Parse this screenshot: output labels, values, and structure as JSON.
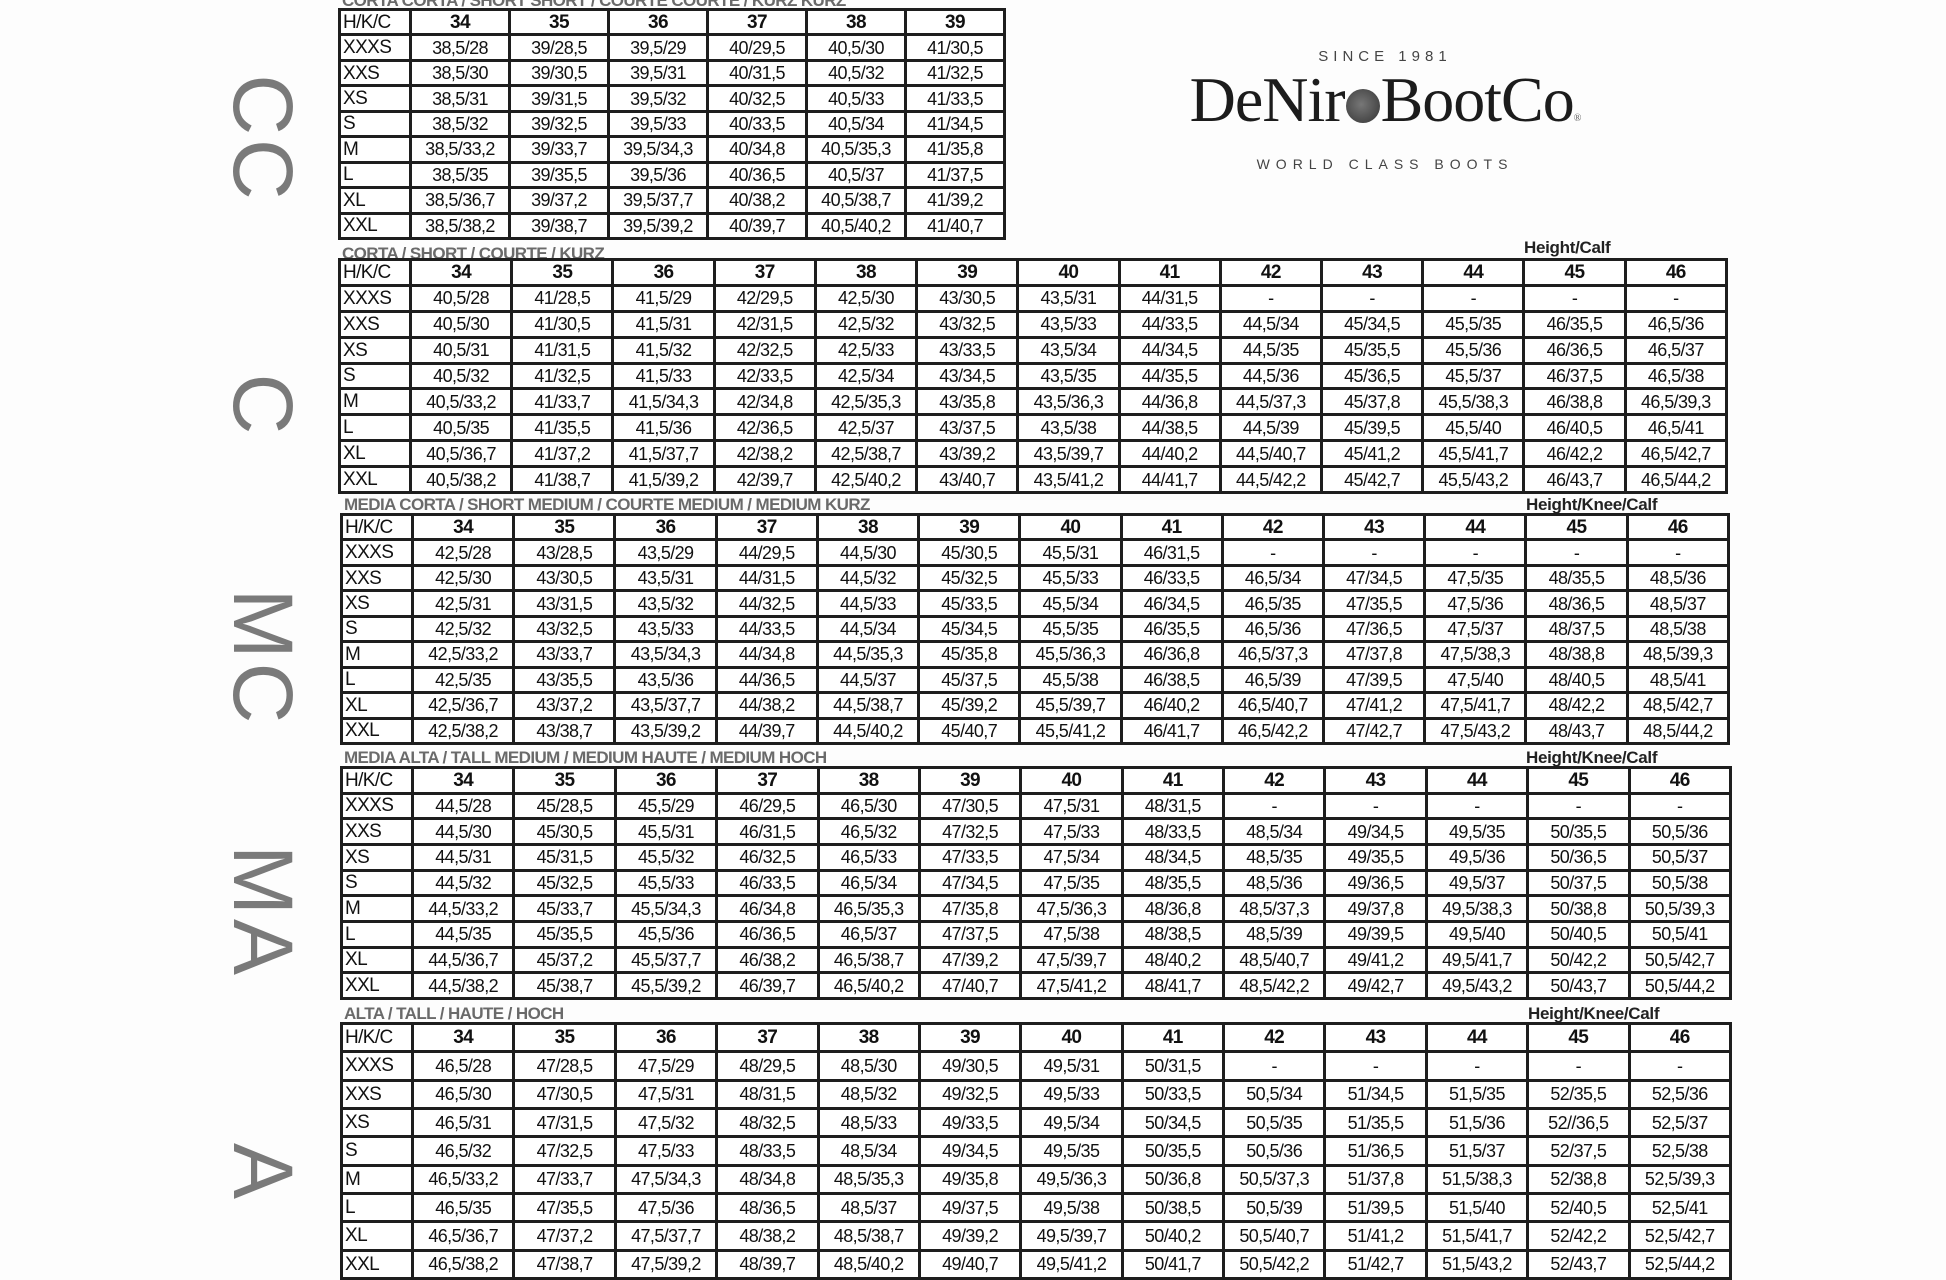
{
  "logo": {
    "since": "SINCE 1981",
    "brand_left": "DeNir",
    "brand_right": "BootCo",
    "registered": "®",
    "tagline": "WORLD CLASS BOOTS"
  },
  "side_labels": [
    "CC",
    "C",
    "MC",
    "MA",
    "A"
  ],
  "tables": [
    {
      "title": "CORTA CORTA / SHORT SHORT / COURTE COURTE / KURZ KURZ",
      "note": "",
      "corner": "H/K/C",
      "columns": [
        "34",
        "35",
        "36",
        "37",
        "38",
        "39"
      ],
      "rows": [
        {
          "size": "XXXS",
          "values": [
            "38,5/28",
            "39/28,5",
            "39,5/29",
            "40/29,5",
            "40,5/30",
            "41/30,5"
          ]
        },
        {
          "size": "XXS",
          "values": [
            "38,5/30",
            "39/30,5",
            "39,5/31",
            "40/31,5",
            "40,5/32",
            "41/32,5"
          ]
        },
        {
          "size": "XS",
          "values": [
            "38,5/31",
            "39/31,5",
            "39,5/32",
            "40/32,5",
            "40,5/33",
            "41/33,5"
          ]
        },
        {
          "size": "S",
          "values": [
            "38,5/32",
            "39/32,5",
            "39,5/33",
            "40/33,5",
            "40,5/34",
            "41/34,5"
          ]
        },
        {
          "size": "M",
          "values": [
            "38,5/33,2",
            "39/33,7",
            "39,5/34,3",
            "40/34,8",
            "40,5/35,3",
            "41/35,8"
          ]
        },
        {
          "size": "L",
          "values": [
            "38,5/35",
            "39/35,5",
            "39,5/36",
            "40/36,5",
            "40,5/37",
            "41/37,5"
          ]
        },
        {
          "size": "XL",
          "values": [
            "38,5/36,7",
            "39/37,2",
            "39,5/37,7",
            "40/38,2",
            "40,5/38,7",
            "41/39,2"
          ]
        },
        {
          "size": "XXL",
          "values": [
            "38,5/38,2",
            "39/38,7",
            "39,5/39,2",
            "40/39,7",
            "40,5/40,2",
            "41/40,7"
          ]
        }
      ]
    },
    {
      "title": "CORTA / SHORT / COURTE / KURZ",
      "note": "Height/Calf",
      "corner": "H/K/C",
      "columns": [
        "34",
        "35",
        "36",
        "37",
        "38",
        "39",
        "40",
        "41",
        "42",
        "43",
        "44",
        "45",
        "46"
      ],
      "rows": [
        {
          "size": "XXXS",
          "values": [
            "40,5/28",
            "41/28,5",
            "41,5/29",
            "42/29,5",
            "42,5/30",
            "43/30,5",
            "43,5/31",
            "44/31,5",
            "-",
            "-",
            "-",
            "-",
            "-"
          ]
        },
        {
          "size": "XXS",
          "values": [
            "40,5/30",
            "41/30,5",
            "41,5/31",
            "42/31,5",
            "42,5/32",
            "43/32,5",
            "43,5/33",
            "44/33,5",
            "44,5/34",
            "45/34,5",
            "45,5/35",
            "46/35,5",
            "46,5/36"
          ]
        },
        {
          "size": "XS",
          "values": [
            "40,5/31",
            "41/31,5",
            "41,5/32",
            "42/32,5",
            "42,5/33",
            "43/33,5",
            "43,5/34",
            "44/34,5",
            "44,5/35",
            "45/35,5",
            "45,5/36",
            "46/36,5",
            "46,5/37"
          ]
        },
        {
          "size": "S",
          "values": [
            "40,5/32",
            "41/32,5",
            "41,5/33",
            "42/33,5",
            "42,5/34",
            "43/34,5",
            "43,5/35",
            "44/35,5",
            "44,5/36",
            "45/36,5",
            "45,5/37",
            "46/37,5",
            "46,5/38"
          ]
        },
        {
          "size": "M",
          "values": [
            "40,5/33,2",
            "41/33,7",
            "41,5/34,3",
            "42/34,8",
            "42,5/35,3",
            "43/35,8",
            "43,5/36,3",
            "44/36,8",
            "44,5/37,3",
            "45/37,8",
            "45,5/38,3",
            "46/38,8",
            "46,5/39,3"
          ]
        },
        {
          "size": "L",
          "values": [
            "40,5/35",
            "41/35,5",
            "41,5/36",
            "42/36,5",
            "42,5/37",
            "43/37,5",
            "43,5/38",
            "44/38,5",
            "44,5/39",
            "45/39,5",
            "45,5/40",
            "46/40,5",
            "46,5/41"
          ]
        },
        {
          "size": "XL",
          "values": [
            "40,5/36,7",
            "41/37,2",
            "41,5/37,7",
            "42/38,2",
            "42,5/38,7",
            "43/39,2",
            "43,5/39,7",
            "44/40,2",
            "44,5/40,7",
            "45/41,2",
            "45,5/41,7",
            "46/42,2",
            "46,5/42,7"
          ]
        },
        {
          "size": "XXL",
          "values": [
            "40,5/38,2",
            "41/38,7",
            "41,5/39,2",
            "42/39,7",
            "42,5/40,2",
            "43/40,7",
            "43,5/41,2",
            "44/41,7",
            "44,5/42,2",
            "45/42,7",
            "45,5/43,2",
            "46/43,7",
            "46,5/44,2"
          ]
        }
      ]
    },
    {
      "title": "MEDIA CORTA / SHORT MEDIUM / COURTE MEDIUM / MEDIUM KURZ",
      "note": "Height/Knee/Calf",
      "corner": "H/K/C",
      "columns": [
        "34",
        "35",
        "36",
        "37",
        "38",
        "39",
        "40",
        "41",
        "42",
        "43",
        "44",
        "45",
        "46"
      ],
      "rows": [
        {
          "size": "XXXS",
          "values": [
            "42,5/28",
            "43/28,5",
            "43,5/29",
            "44/29,5",
            "44,5/30",
            "45/30,5",
            "45,5/31",
            "46/31,5",
            "-",
            "-",
            "-",
            "-",
            "-"
          ]
        },
        {
          "size": "XXS",
          "values": [
            "42,5/30",
            "43/30,5",
            "43,5/31",
            "44/31,5",
            "44,5/32",
            "45/32,5",
            "45,5/33",
            "46/33,5",
            "46,5/34",
            "47/34,5",
            "47,5/35",
            "48/35,5",
            "48,5/36"
          ]
        },
        {
          "size": "XS",
          "values": [
            "42,5/31",
            "43/31,5",
            "43,5/32",
            "44/32,5",
            "44,5/33",
            "45/33,5",
            "45,5/34",
            "46/34,5",
            "46,5/35",
            "47/35,5",
            "47,5/36",
            "48/36,5",
            "48,5/37"
          ]
        },
        {
          "size": "S",
          "values": [
            "42,5/32",
            "43/32,5",
            "43,5/33",
            "44/33,5",
            "44,5/34",
            "45/34,5",
            "45,5/35",
            "46/35,5",
            "46,5/36",
            "47/36,5",
            "47,5/37",
            "48/37,5",
            "48,5/38"
          ]
        },
        {
          "size": "M",
          "values": [
            "42,5/33,2",
            "43/33,7",
            "43,5/34,3",
            "44/34,8",
            "44,5/35,3",
            "45/35,8",
            "45,5/36,3",
            "46/36,8",
            "46,5/37,3",
            "47/37,8",
            "47,5/38,3",
            "48/38,8",
            "48,5/39,3"
          ]
        },
        {
          "size": "L",
          "values": [
            "42,5/35",
            "43/35,5",
            "43,5/36",
            "44/36,5",
            "44,5/37",
            "45/37,5",
            "45,5/38",
            "46/38,5",
            "46,5/39",
            "47/39,5",
            "47,5/40",
            "48/40,5",
            "48,5/41"
          ]
        },
        {
          "size": "XL",
          "values": [
            "42,5/36,7",
            "43/37,2",
            "43,5/37,7",
            "44/38,2",
            "44,5/38,7",
            "45/39,2",
            "45,5/39,7",
            "46/40,2",
            "46,5/40,7",
            "47/41,2",
            "47,5/41,7",
            "48/42,2",
            "48,5/42,7"
          ]
        },
        {
          "size": "XXL",
          "values": [
            "42,5/38,2",
            "43/38,7",
            "43,5/39,2",
            "44/39,7",
            "44,5/40,2",
            "45/40,7",
            "45,5/41,2",
            "46/41,7",
            "46,5/42,2",
            "47/42,7",
            "47,5/43,2",
            "48/43,7",
            "48,5/44,2"
          ]
        }
      ]
    },
    {
      "title": "MEDIA ALTA / TALL MEDIUM / MEDIUM HAUTE / MEDIUM HOCH",
      "note": "Height/Knee/Calf",
      "corner": "H/K/C",
      "columns": [
        "34",
        "35",
        "36",
        "37",
        "38",
        "39",
        "40",
        "41",
        "42",
        "43",
        "44",
        "45",
        "46"
      ],
      "rows": [
        {
          "size": "XXXS",
          "values": [
            "44,5/28",
            "45/28,5",
            "45,5/29",
            "46/29,5",
            "46,5/30",
            "47/30,5",
            "47,5/31",
            "48/31,5",
            "-",
            "-",
            "-",
            "-",
            "-"
          ]
        },
        {
          "size": "XXS",
          "values": [
            "44,5/30",
            "45/30,5",
            "45,5/31",
            "46/31,5",
            "46,5/32",
            "47/32,5",
            "47,5/33",
            "48/33,5",
            "48,5/34",
            "49/34,5",
            "49,5/35",
            "50/35,5",
            "50,5/36"
          ]
        },
        {
          "size": "XS",
          "values": [
            "44,5/31",
            "45/31,5",
            "45,5/32",
            "46/32,5",
            "46,5/33",
            "47/33,5",
            "47,5/34",
            "48/34,5",
            "48,5/35",
            "49/35,5",
            "49,5/36",
            "50/36,5",
            "50,5/37"
          ]
        },
        {
          "size": "S",
          "values": [
            "44,5/32",
            "45/32,5",
            "45,5/33",
            "46/33,5",
            "46,5/34",
            "47/34,5",
            "47,5/35",
            "48/35,5",
            "48,5/36",
            "49/36,5",
            "49,5/37",
            "50/37,5",
            "50,5/38"
          ]
        },
        {
          "size": "M",
          "values": [
            "44,5/33,2",
            "45/33,7",
            "45,5/34,3",
            "46/34,8",
            "46,5/35,3",
            "47/35,8",
            "47,5/36,3",
            "48/36,8",
            "48,5/37,3",
            "49/37,8",
            "49,5/38,3",
            "50/38,8",
            "50,5/39,3"
          ]
        },
        {
          "size": "L",
          "values": [
            "44,5/35",
            "45/35,5",
            "45,5/36",
            "46/36,5",
            "46,5/37",
            "47/37,5",
            "47,5/38",
            "48/38,5",
            "48,5/39",
            "49/39,5",
            "49,5/40",
            "50/40,5",
            "50,5/41"
          ]
        },
        {
          "size": "XL",
          "values": [
            "44,5/36,7",
            "45/37,2",
            "45,5/37,7",
            "46/38,2",
            "46,5/38,7",
            "47/39,2",
            "47,5/39,7",
            "48/40,2",
            "48,5/40,7",
            "49/41,2",
            "49,5/41,7",
            "50/42,2",
            "50,5/42,7"
          ]
        },
        {
          "size": "XXL",
          "values": [
            "44,5/38,2",
            "45/38,7",
            "45,5/39,2",
            "46/39,7",
            "46,5/40,2",
            "47/40,7",
            "47,5/41,2",
            "48/41,7",
            "48,5/42,2",
            "49/42,7",
            "49,5/43,2",
            "50/43,7",
            "50,5/44,2"
          ]
        }
      ]
    },
    {
      "title": "ALTA / TALL / HAUTE / HOCH",
      "note": "Height/Knee/Calf",
      "corner": "H/K/C",
      "columns": [
        "34",
        "35",
        "36",
        "37",
        "38",
        "39",
        "40",
        "41",
        "42",
        "43",
        "44",
        "45",
        "46"
      ],
      "rows": [
        {
          "size": "XXXS",
          "values": [
            "46,5/28",
            "47/28,5",
            "47,5/29",
            "48/29,5",
            "48,5/30",
            "49/30,5",
            "49,5/31",
            "50/31,5",
            "-",
            "-",
            "-",
            "-",
            "-"
          ]
        },
        {
          "size": "XXS",
          "values": [
            "46,5/30",
            "47/30,5",
            "47,5/31",
            "48/31,5",
            "48,5/32",
            "49/32,5",
            "49,5/33",
            "50/33,5",
            "50,5/34",
            "51/34,5",
            "51,5/35",
            "52/35,5",
            "52,5/36"
          ]
        },
        {
          "size": "XS",
          "values": [
            "46,5/31",
            "47/31,5",
            "47,5/32",
            "48/32,5",
            "48,5/33",
            "49/33,5",
            "49,5/34",
            "50/34,5",
            "50,5/35",
            "51/35,5",
            "51,5/36",
            "52//36,5",
            "52,5/37"
          ]
        },
        {
          "size": "S",
          "values": [
            "46,5/32",
            "47/32,5",
            "47,5/33",
            "48/33,5",
            "48,5/34",
            "49/34,5",
            "49,5/35",
            "50/35,5",
            "50,5/36",
            "51/36,5",
            "51,5/37",
            "52/37,5",
            "52,5/38"
          ]
        },
        {
          "size": "M",
          "values": [
            "46,5/33,2",
            "47/33,7",
            "47,5/34,3",
            "48/34,8",
            "48,5/35,3",
            "49/35,8",
            "49,5/36,3",
            "50/36,8",
            "50,5/37,3",
            "51/37,8",
            "51,5/38,3",
            "52/38,8",
            "52,5/39,3"
          ]
        },
        {
          "size": "L",
          "values": [
            "46,5/35",
            "47/35,5",
            "47,5/36",
            "48/36,5",
            "48,5/37",
            "49/37,5",
            "49,5/38",
            "50/38,5",
            "50,5/39",
            "51/39,5",
            "51,5/40",
            "52/40,5",
            "52,5/41"
          ]
        },
        {
          "size": "XL",
          "values": [
            "46,5/36,7",
            "47/37,2",
            "47,5/37,7",
            "48/38,2",
            "48,5/38,7",
            "49/39,2",
            "49,5/39,7",
            "50/40,2",
            "50,5/40,7",
            "51/41,2",
            "51,5/41,7",
            "52/42,2",
            "52,5/42,7"
          ]
        },
        {
          "size": "XXL",
          "values": [
            "46,5/38,2",
            "47/38,7",
            "47,5/39,2",
            "48/39,7",
            "48,5/40,2",
            "49/40,7",
            "49,5/41,2",
            "50/41,7",
            "50,5/42,2",
            "51/42,7",
            "51,5/43,2",
            "52/43,7",
            "52,5/44,2"
          ]
        }
      ]
    }
  ]
}
